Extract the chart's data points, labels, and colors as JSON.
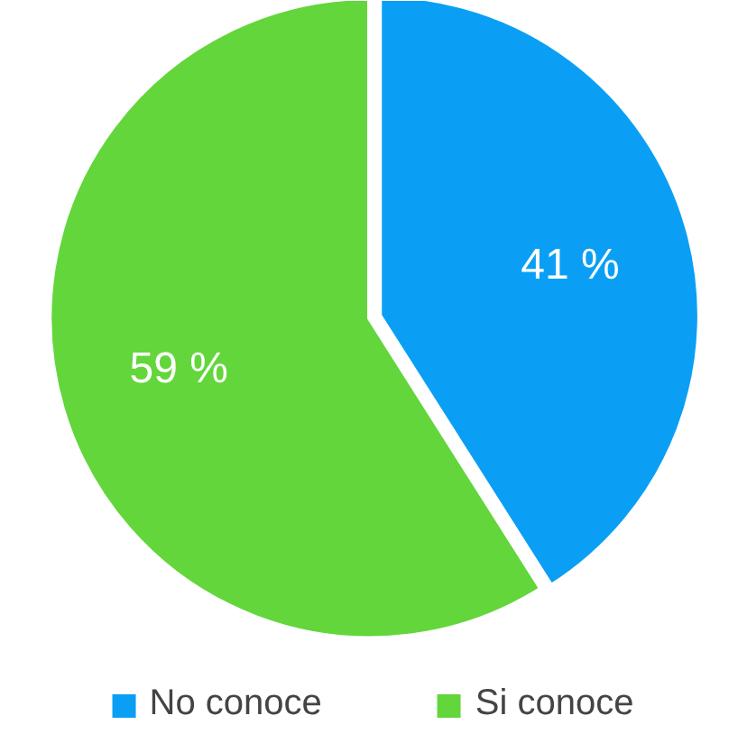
{
  "chart_data": {
    "type": "pie",
    "categories": [
      "No conoce",
      "Si conoce"
    ],
    "values": [
      41,
      59
    ],
    "colors": [
      "#0a9ff5",
      "#62d63a"
    ],
    "value_labels": [
      "41 %",
      "59 %"
    ],
    "legend": "bottom"
  }
}
